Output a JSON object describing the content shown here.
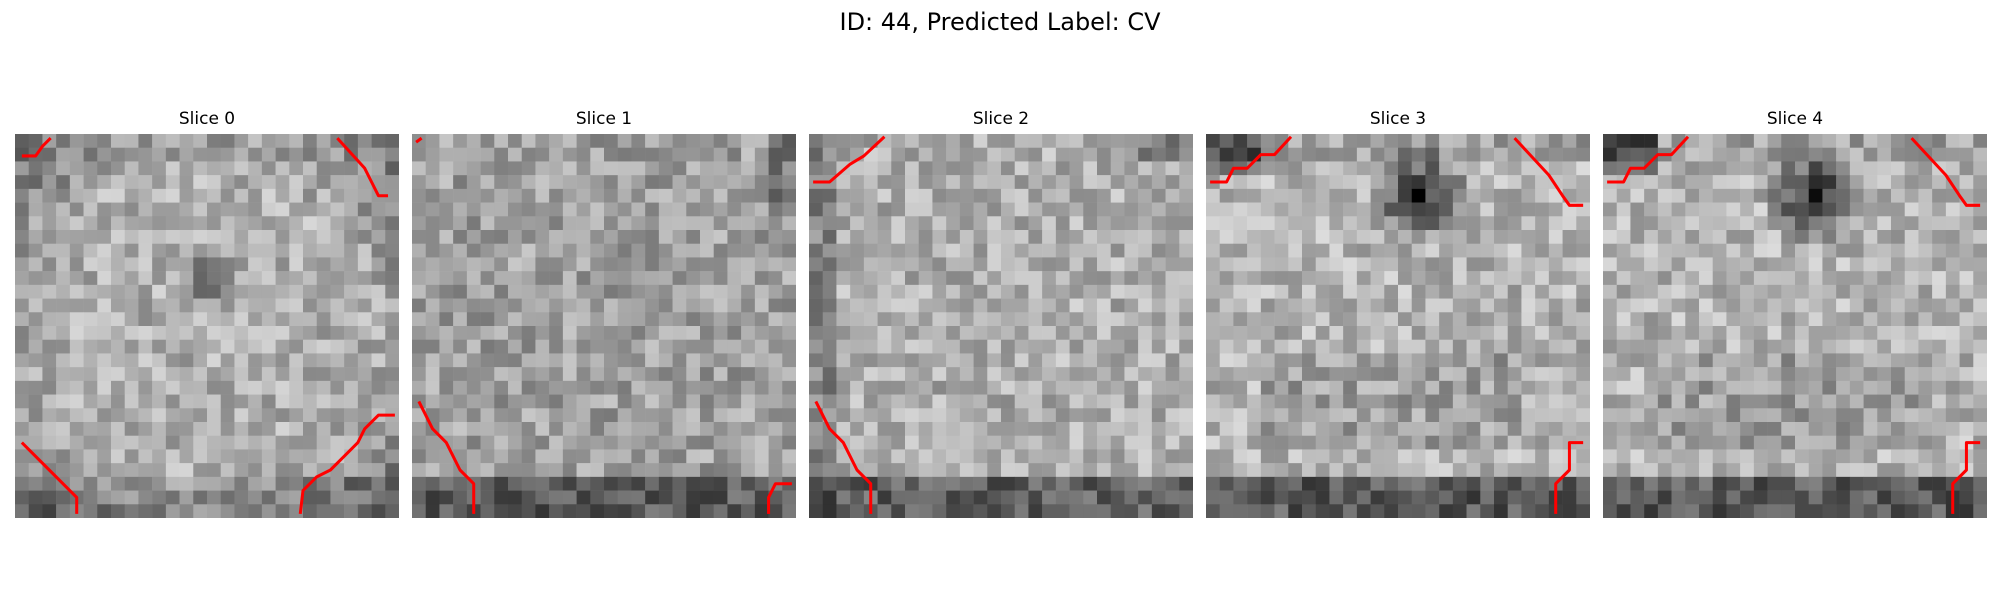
{
  "title": "ID: 44, Predicted Label: CV",
  "slices": [
    {
      "title": "Slice 0"
    },
    {
      "title": "Slice 1"
    },
    {
      "title": "Slice 2"
    },
    {
      "title": "Slice 3"
    },
    {
      "title": "Slice 4"
    }
  ],
  "colors": {
    "background": "#ffffff",
    "contour": "#ff0000",
    "text": "#000000"
  }
}
